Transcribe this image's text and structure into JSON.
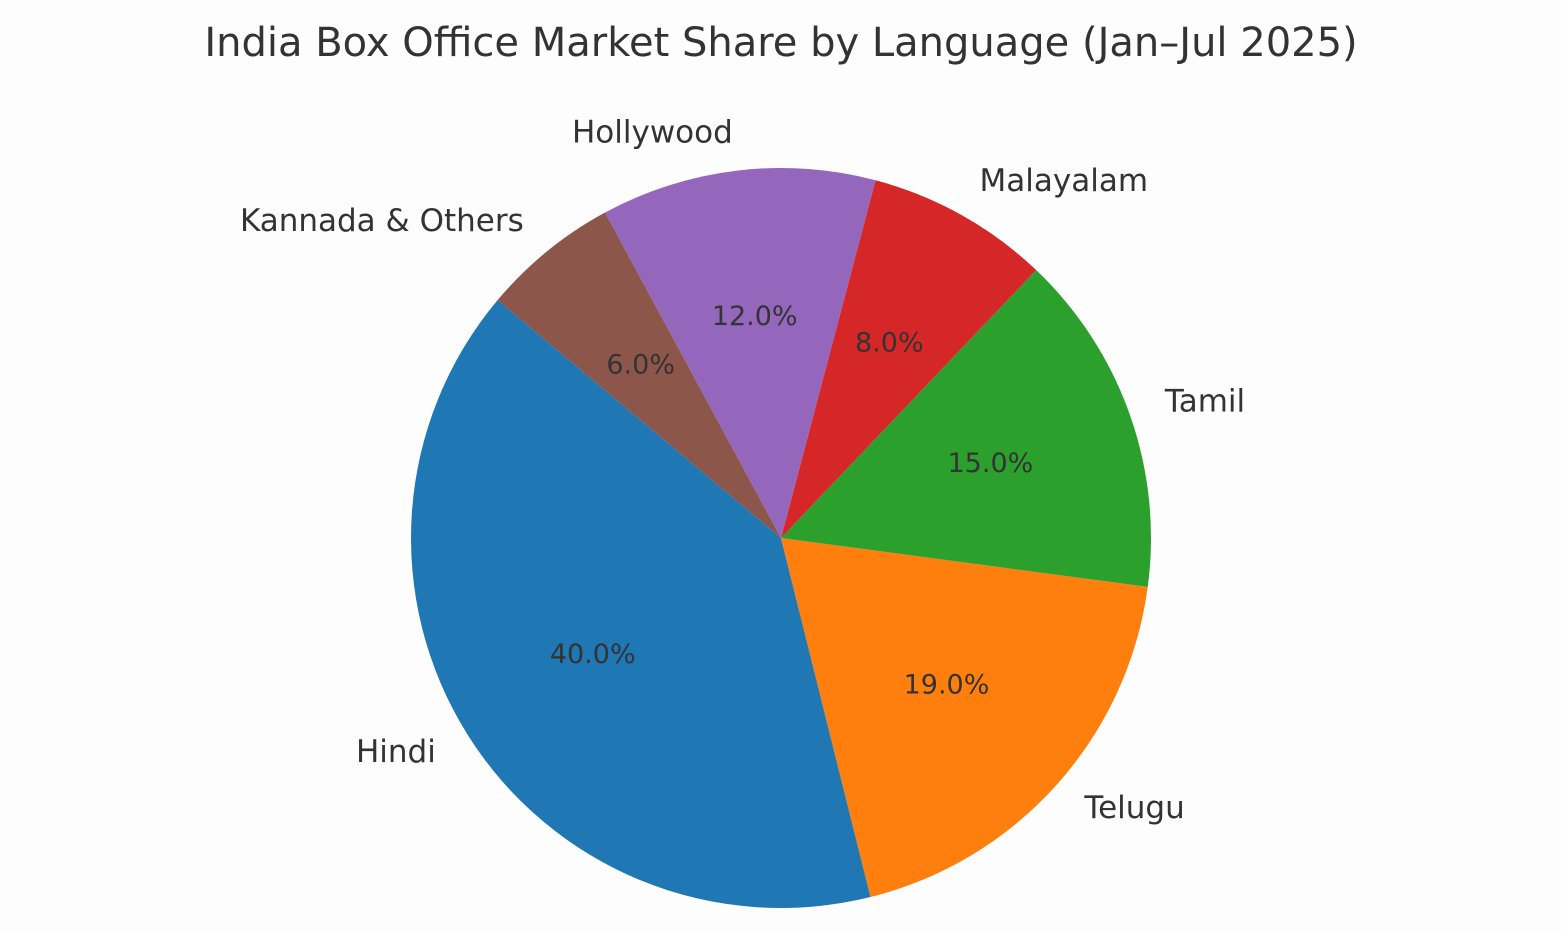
{
  "chart_data": {
    "type": "pie",
    "title": "India Box Office Market Share by Language (Jan–Jul 2025)",
    "categories": [
      "Hindi",
      "Telugu",
      "Tamil",
      "Malayalam",
      "Hollywood",
      "Kannada & Others"
    ],
    "values": [
      40,
      19,
      15,
      8,
      12,
      6
    ],
    "value_labels": [
      "40.0%",
      "19.0%",
      "15.0%",
      "8.0%",
      "12.0%",
      "6.0%"
    ],
    "colors": [
      "#1f77b4",
      "#ff7f0e",
      "#2ca02c",
      "#d62728",
      "#9467bd",
      "#8c564b"
    ]
  }
}
